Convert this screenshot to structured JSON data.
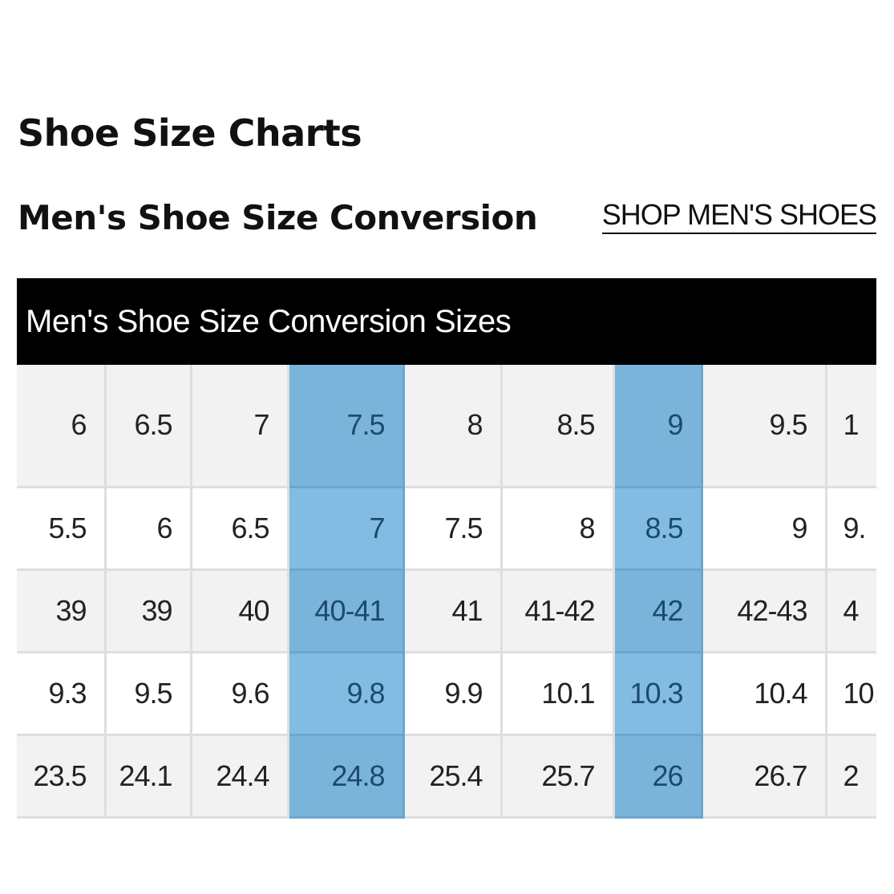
{
  "page": {
    "title": "Shoe Size Charts"
  },
  "section": {
    "title": "Men's Shoe Size Conversion",
    "shop_link": "SHOP MEN'S SHOES"
  },
  "table": {
    "header": "Men's Shoe Size Conversion Sizes",
    "highlight_color": "#7eb8de",
    "highlight_text_color": "#1c4a6e",
    "highlighted_columns": [
      3,
      6
    ],
    "rows": [
      [
        "6",
        "6.5",
        "7",
        "7.5",
        "8",
        "8.5",
        "9",
        "9.5",
        "1"
      ],
      [
        "5.5",
        "6",
        "6.5",
        "7",
        "7.5",
        "8",
        "8.5",
        "9",
        "9."
      ],
      [
        "39",
        "39",
        "40",
        "40-41",
        "41",
        "41-42",
        "42",
        "42-43",
        "4"
      ],
      [
        "9.3",
        "9.5",
        "9.6",
        "9.8",
        "9.9",
        "10.1",
        "10.3",
        "10.4",
        "10."
      ],
      [
        "23.5",
        "24.1",
        "24.4",
        "24.8",
        "25.4",
        "25.7",
        "26",
        "26.7",
        "2"
      ]
    ]
  }
}
